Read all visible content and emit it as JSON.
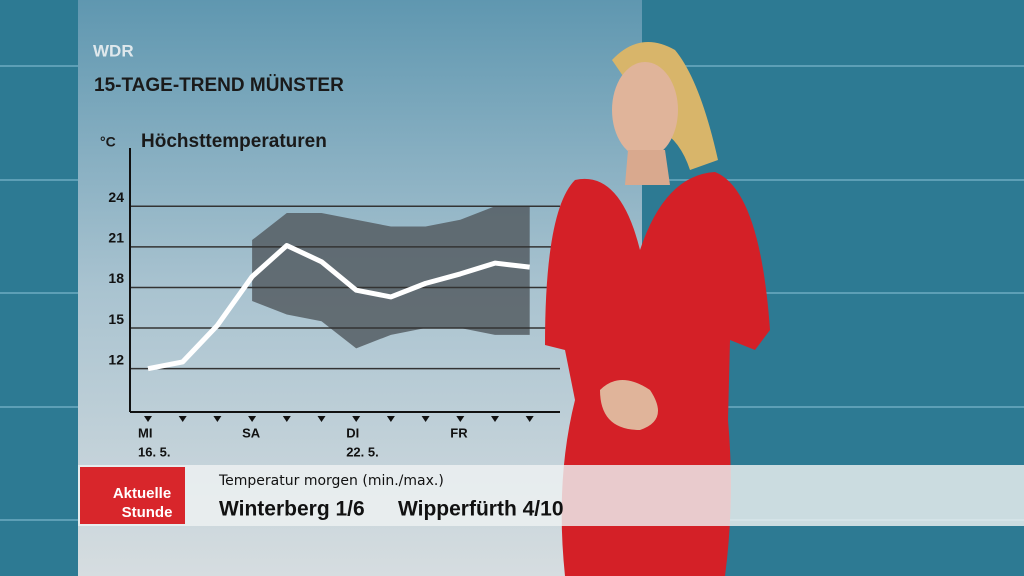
{
  "chart_data": {
    "type": "line",
    "brand": "WDR",
    "title": "15-TAGE-TREND MÜNSTER",
    "y_unit": "°C",
    "y_label": "Höchsttemperaturen",
    "categories": [
      "MI",
      null,
      null,
      "SA",
      null,
      null,
      "DI",
      null,
      null,
      "FR",
      null,
      null
    ],
    "dates": [
      "16. 5.",
      null,
      null,
      null,
      null,
      null,
      "22. 5.",
      null,
      null,
      null,
      null,
      null
    ],
    "series": [
      {
        "color": "#ffffff",
        "values": [
          12.0,
          12.5,
          15.2,
          18.8,
          21.1,
          19.9,
          17.8,
          17.3,
          18.3,
          19.0,
          19.8,
          19.5
        ]
      }
    ],
    "band": {
      "color": "#555d63",
      "upper": [
        null,
        null,
        null,
        21.5,
        23.5,
        23.5,
        23.0,
        22.5,
        22.5,
        23.0,
        24.0,
        24.0
      ],
      "lower": [
        null,
        null,
        null,
        17.0,
        16.0,
        15.5,
        13.5,
        14.5,
        15.0,
        15.0,
        14.5,
        14.5
      ]
    },
    "ylim": [
      8.8,
      28.3
    ],
    "yticks": [
      12,
      15,
      18,
      21,
      24
    ],
    "grid": true
  },
  "ticker": {
    "logo": [
      "Aktuelle",
      "Stunde"
    ],
    "heading": "Temperatur morgen (min./max.)",
    "items": [
      "Winterberg 1/6",
      "Wipperfürth 4/10"
    ]
  }
}
